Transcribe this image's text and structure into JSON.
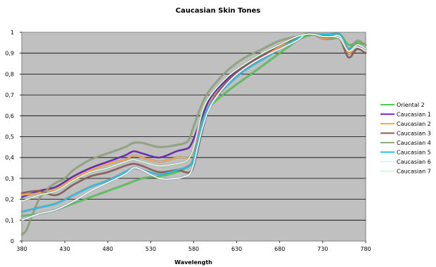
{
  "chart_data": {
    "type": "line",
    "title": "Caucasian Skin Tones",
    "xlabel": "Wavelength",
    "ylabel": "",
    "xlim": [
      380,
      780
    ],
    "ylim": [
      0,
      1
    ],
    "xticks": [
      380,
      430,
      480,
      530,
      580,
      630,
      680,
      730,
      780
    ],
    "yticks": [
      "0",
      "0,1",
      "0,2",
      "0,3",
      "0,4",
      "0,5",
      "0,6",
      "0,7",
      "0,8",
      "0,9",
      "1"
    ],
    "grid": true,
    "plot_background": "#c0c0c0",
    "legend_position": "right",
    "series": [
      {
        "name": "Oriental 2",
        "color": "#4dcc4d",
        "x": [
          380,
          400,
          420,
          440,
          460,
          480,
          500,
          520,
          540,
          560,
          570,
          580,
          585,
          590,
          600,
          620,
          640,
          660,
          680,
          700,
          710,
          720,
          730,
          740,
          750,
          760,
          770,
          780
        ],
        "y": [
          0.12,
          0.13,
          0.15,
          0.18,
          0.21,
          0.24,
          0.27,
          0.3,
          0.31,
          0.33,
          0.35,
          0.38,
          0.45,
          0.58,
          0.65,
          0.72,
          0.78,
          0.84,
          0.9,
          0.96,
          0.98,
          0.99,
          0.98,
          0.99,
          0.99,
          0.94,
          0.95,
          0.94
        ]
      },
      {
        "name": "Caucasian 1",
        "color": "#6a1fc4",
        "x": [
          380,
          400,
          420,
          440,
          460,
          480,
          500,
          510,
          520,
          540,
          560,
          570,
          575,
          580,
          590,
          600,
          620,
          640,
          660,
          680,
          700,
          710,
          720,
          730,
          740,
          750,
          760,
          770,
          780
        ],
        "y": [
          0.21,
          0.24,
          0.26,
          0.31,
          0.35,
          0.38,
          0.41,
          0.43,
          0.42,
          0.4,
          0.43,
          0.44,
          0.45,
          0.49,
          0.6,
          0.69,
          0.78,
          0.84,
          0.89,
          0.93,
          0.97,
          0.99,
          0.99,
          0.97,
          0.97,
          0.97,
          0.9,
          0.93,
          0.91
        ]
      },
      {
        "name": "Caucasian 2",
        "color": "#ffa64d",
        "x": [
          380,
          400,
          420,
          440,
          460,
          480,
          500,
          510,
          520,
          540,
          560,
          570,
          575,
          580,
          590,
          600,
          620,
          640,
          660,
          680,
          700,
          710,
          720,
          730,
          740,
          750,
          760,
          770,
          780
        ],
        "y": [
          0.22,
          0.23,
          0.25,
          0.3,
          0.34,
          0.37,
          0.39,
          0.41,
          0.4,
          0.38,
          0.4,
          0.4,
          0.4,
          0.44,
          0.57,
          0.67,
          0.77,
          0.83,
          0.88,
          0.93,
          0.97,
          0.99,
          0.99,
          0.97,
          0.97,
          0.97,
          0.9,
          0.93,
          0.9
        ]
      },
      {
        "name": "Caucasian 3",
        "color": "#8c5a5a",
        "x": [
          380,
          400,
          420,
          440,
          460,
          480,
          500,
          510,
          520,
          540,
          560,
          570,
          575,
          580,
          590,
          600,
          620,
          640,
          660,
          680,
          700,
          710,
          720,
          730,
          740,
          750,
          760,
          770,
          780
        ],
        "y": [
          0.23,
          0.24,
          0.22,
          0.27,
          0.31,
          0.33,
          0.36,
          0.37,
          0.36,
          0.33,
          0.34,
          0.33,
          0.33,
          0.36,
          0.53,
          0.66,
          0.77,
          0.84,
          0.89,
          0.94,
          0.97,
          0.99,
          0.99,
          0.98,
          0.98,
          0.97,
          0.88,
          0.92,
          0.9
        ]
      },
      {
        "name": "Caucasian 4",
        "color": "#8fa87a",
        "x": [
          380,
          385,
          390,
          400,
          410,
          420,
          430,
          440,
          460,
          480,
          500,
          510,
          520,
          540,
          560,
          570,
          575,
          580,
          590,
          600,
          620,
          640,
          660,
          680,
          700,
          710,
          720,
          730,
          740,
          750,
          760,
          770,
          780
        ],
        "y": [
          0.03,
          0.05,
          0.1,
          0.2,
          0.25,
          0.28,
          0.3,
          0.34,
          0.39,
          0.42,
          0.45,
          0.47,
          0.47,
          0.45,
          0.46,
          0.47,
          0.49,
          0.55,
          0.66,
          0.73,
          0.82,
          0.88,
          0.92,
          0.96,
          0.98,
          0.99,
          0.99,
          0.98,
          0.97,
          0.97,
          0.92,
          0.96,
          0.94
        ]
      },
      {
        "name": "Caucasian 5",
        "color": "#1fc4e6",
        "x": [
          380,
          400,
          420,
          440,
          460,
          480,
          500,
          510,
          520,
          540,
          560,
          570,
          575,
          580,
          590,
          600,
          620,
          640,
          660,
          680,
          700,
          710,
          720,
          730,
          740,
          750,
          760,
          770,
          780
        ],
        "y": [
          0.14,
          0.16,
          0.18,
          0.22,
          0.26,
          0.29,
          0.33,
          0.35,
          0.34,
          0.32,
          0.34,
          0.35,
          0.36,
          0.4,
          0.57,
          0.66,
          0.75,
          0.82,
          0.87,
          0.92,
          0.97,
          0.99,
          0.99,
          0.99,
          0.99,
          0.99,
          0.92,
          0.94,
          0.92
        ]
      },
      {
        "name": "Caucasian 6",
        "color": "#e3f2f8",
        "x": [
          380,
          400,
          420,
          440,
          460,
          480,
          500,
          510,
          520,
          540,
          560,
          570,
          575,
          580,
          590,
          600,
          620,
          640,
          660,
          680,
          700,
          710,
          720,
          730,
          740,
          750,
          760,
          770,
          780
        ],
        "y": [
          0.1,
          0.13,
          0.15,
          0.19,
          0.24,
          0.28,
          0.32,
          0.35,
          0.34,
          0.3,
          0.3,
          0.31,
          0.32,
          0.37,
          0.54,
          0.65,
          0.76,
          0.83,
          0.88,
          0.92,
          0.96,
          0.99,
          0.99,
          0.98,
          0.98,
          0.98,
          0.91,
          0.93,
          0.91
        ]
      },
      {
        "name": "Caucasian 7",
        "color": "#d8f3d8",
        "x": [
          380,
          400,
          420,
          440,
          460,
          480,
          500,
          510,
          520,
          540,
          560,
          570,
          575,
          580,
          590,
          600,
          620,
          640,
          660,
          680,
          700,
          710,
          720,
          730,
          740,
          750,
          760,
          770,
          780
        ],
        "y": [
          0.19,
          0.22,
          0.24,
          0.29,
          0.33,
          0.35,
          0.38,
          0.39,
          0.38,
          0.36,
          0.37,
          0.38,
          0.4,
          0.45,
          0.62,
          0.7,
          0.79,
          0.85,
          0.9,
          0.94,
          0.98,
          0.99,
          0.99,
          0.98,
          0.98,
          0.97,
          0.91,
          0.94,
          0.92
        ]
      }
    ]
  }
}
